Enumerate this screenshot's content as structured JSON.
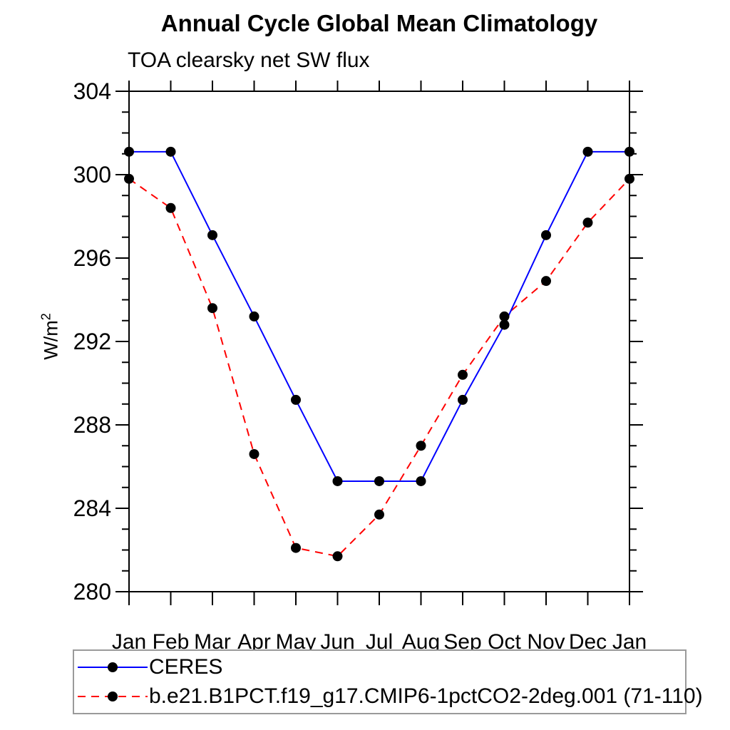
{
  "title": "Annual Cycle Global Mean Climatology",
  "subtitle": "TOA clearsky net SW flux",
  "ylabel": {
    "base": "W/m",
    "exp": "2"
  },
  "colors": {
    "ceres_line": "#0000ff",
    "model_line": "#ff0000",
    "marker": "#000000",
    "axis": "#000000",
    "legend_border": "#9a9a9a"
  },
  "chart_data": {
    "type": "line",
    "title": "Annual Cycle Global Mean Climatology",
    "subtitle": "TOA clearsky net SW flux",
    "xlabel": "",
    "ylabel": "W/m^2",
    "categories": [
      "Jan",
      "Feb",
      "Mar",
      "Apr",
      "May",
      "Jun",
      "Jul",
      "Aug",
      "Sep",
      "Oct",
      "Nov",
      "Dec",
      "Jan"
    ],
    "ylim": [
      280,
      304
    ],
    "ytick_major": 4,
    "ytick_minor": 1,
    "ytick_labels": [
      280,
      284,
      288,
      292,
      296,
      300,
      304
    ],
    "grid": false,
    "legend_position": "bottom-left-box",
    "series": [
      {
        "name": "CERES",
        "color": "#0000ff",
        "style": "solid",
        "marker": "circle",
        "marker_color": "#000000",
        "values": [
          301.1,
          301.1,
          297.1,
          293.2,
          289.2,
          285.3,
          285.3,
          285.3,
          289.2,
          292.8,
          297.1,
          301.1,
          301.1
        ]
      },
      {
        "name": "b.e21.B1PCT.f19_g17.CMIP6-1pctCO2-2deg.001 (71-110)",
        "color": "#ff0000",
        "style": "dashed",
        "marker": "circle",
        "marker_color": "#000000",
        "values": [
          299.8,
          298.4,
          293.6,
          286.6,
          282.1,
          281.7,
          283.7,
          287.0,
          290.4,
          293.2,
          294.9,
          297.7,
          299.8
        ]
      }
    ]
  }
}
